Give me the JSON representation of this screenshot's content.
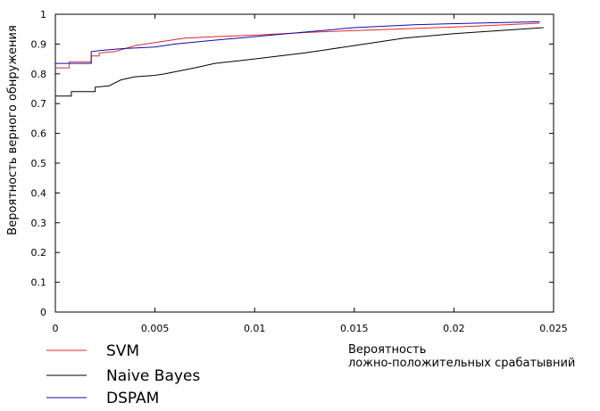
{
  "chart_data": {
    "type": "line",
    "title": "",
    "xlabel_lines": [
      "Вероятность",
      "ложно-положительных срабатывний"
    ],
    "ylabel": "Вероятность верного обнружения",
    "xlim": [
      0,
      0.025
    ],
    "ylim": [
      0,
      1
    ],
    "xticks": [
      {
        "v": 0,
        "label": "0"
      },
      {
        "v": 0.005,
        "label": "0.005"
      },
      {
        "v": 0.01,
        "label": "0.01"
      },
      {
        "v": 0.015,
        "label": "0.015"
      },
      {
        "v": 0.02,
        "label": "0.02"
      },
      {
        "v": 0.025,
        "label": "0.025"
      }
    ],
    "yticks": [
      {
        "v": 0,
        "label": "0"
      },
      {
        "v": 0.1,
        "label": "0.1"
      },
      {
        "v": 0.2,
        "label": "0.2"
      },
      {
        "v": 0.3,
        "label": "0.3"
      },
      {
        "v": 0.4,
        "label": "0.4"
      },
      {
        "v": 0.5,
        "label": "0.5"
      },
      {
        "v": 0.6,
        "label": "0.6"
      },
      {
        "v": 0.7,
        "label": "0.7"
      },
      {
        "v": 0.8,
        "label": "0.8"
      },
      {
        "v": 0.9,
        "label": "0.9"
      },
      {
        "v": 1,
        "label": "1"
      }
    ],
    "grid": false,
    "legend_position": "bottom-left",
    "series": [
      {
        "name": "SVM",
        "color": "#e8262a",
        "points": [
          [
            0,
            0.82
          ],
          [
            0.0007,
            0.82
          ],
          [
            0.0007,
            0.84
          ],
          [
            0.0018,
            0.84
          ],
          [
            0.0018,
            0.86
          ],
          [
            0.0022,
            0.86
          ],
          [
            0.0022,
            0.87
          ],
          [
            0.003,
            0.875
          ],
          [
            0.004,
            0.895
          ],
          [
            0.005,
            0.905
          ],
          [
            0.0065,
            0.92
          ],
          [
            0.008,
            0.925
          ],
          [
            0.01,
            0.93
          ],
          [
            0.013,
            0.94
          ],
          [
            0.017,
            0.95
          ],
          [
            0.021,
            0.96
          ],
          [
            0.0243,
            0.97
          ]
        ]
      },
      {
        "name": "Naive Bayes",
        "color": "#000000",
        "points": [
          [
            0,
            0.725
          ],
          [
            0.0008,
            0.725
          ],
          [
            0.0008,
            0.74
          ],
          [
            0.002,
            0.74
          ],
          [
            0.002,
            0.755
          ],
          [
            0.0027,
            0.76
          ],
          [
            0.0033,
            0.78
          ],
          [
            0.004,
            0.79
          ],
          [
            0.005,
            0.795
          ],
          [
            0.0055,
            0.8
          ],
          [
            0.007,
            0.82
          ],
          [
            0.008,
            0.835
          ],
          [
            0.01,
            0.85
          ],
          [
            0.0125,
            0.87
          ],
          [
            0.0135,
            0.88
          ],
          [
            0.015,
            0.895
          ],
          [
            0.0175,
            0.92
          ],
          [
            0.02,
            0.935
          ],
          [
            0.0245,
            0.955
          ]
        ]
      },
      {
        "name": "DSPAM",
        "color": "#0d0ba8",
        "points": [
          [
            0,
            0.835
          ],
          [
            0.0018,
            0.835
          ],
          [
            0.0018,
            0.875
          ],
          [
            0.0025,
            0.88
          ],
          [
            0.0035,
            0.885
          ],
          [
            0.005,
            0.89
          ],
          [
            0.006,
            0.9
          ],
          [
            0.0075,
            0.91
          ],
          [
            0.01,
            0.925
          ],
          [
            0.0125,
            0.94
          ],
          [
            0.015,
            0.955
          ],
          [
            0.018,
            0.965
          ],
          [
            0.021,
            0.97
          ],
          [
            0.0243,
            0.975
          ]
        ]
      }
    ]
  }
}
